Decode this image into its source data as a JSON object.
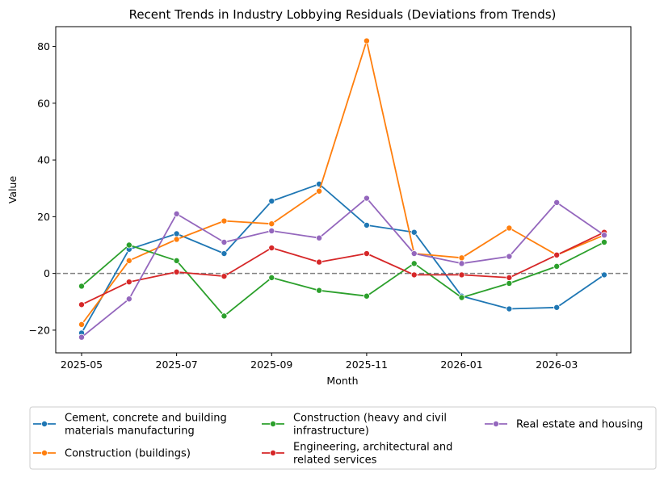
{
  "chart_data": {
    "type": "line",
    "title": "Recent Trends in Industry Lobbying Residuals (Deviations from Trends)",
    "xlabel": "Month",
    "ylabel": "Value",
    "x": [
      "2025-05",
      "2025-06",
      "2025-07",
      "2025-08",
      "2025-09",
      "2025-10",
      "2025-11",
      "2025-12",
      "2026-01",
      "2026-02",
      "2026-03",
      "2026-04"
    ],
    "x_ticks": [
      "2025-05",
      "2025-07",
      "2025-09",
      "2025-11",
      "2026-01",
      "2026-03"
    ],
    "y_ticks": [
      -20,
      0,
      20,
      40,
      60,
      80
    ],
    "ylim": [
      -28,
      87
    ],
    "reference_line": 0,
    "legend_position": "bottom",
    "series": [
      {
        "name": "Cement, concrete and building materials manufacturing",
        "color": "#1f77b4",
        "values": [
          -21,
          8.5,
          14,
          7,
          25.5,
          31.5,
          17,
          14.5,
          -8,
          -12.5,
          -12,
          -0.5
        ]
      },
      {
        "name": "Construction (buildings)",
        "color": "#ff7f0e",
        "values": [
          -18,
          4.5,
          12,
          18.5,
          17.5,
          29,
          82,
          7,
          5.5,
          16,
          6.5,
          13.5
        ]
      },
      {
        "name": "Construction (heavy and civil infrastructure)",
        "color": "#2ca02c",
        "values": [
          -4.5,
          10,
          4.5,
          -15,
          -1.5,
          -6,
          -8,
          3.5,
          -8.5,
          -3.5,
          2.5,
          11
        ]
      },
      {
        "name": "Engineering, architectural and related services",
        "color": "#d62728",
        "values": [
          -11,
          -3,
          0.5,
          -1,
          9,
          4,
          7,
          -0.5,
          -0.5,
          -1.5,
          6.5,
          14.5
        ]
      },
      {
        "name": "Real estate and housing",
        "color": "#9467bd",
        "values": [
          -22.5,
          -9,
          21,
          11,
          15,
          12.5,
          26.5,
          7,
          3.5,
          6,
          25,
          13.5
        ]
      }
    ]
  }
}
